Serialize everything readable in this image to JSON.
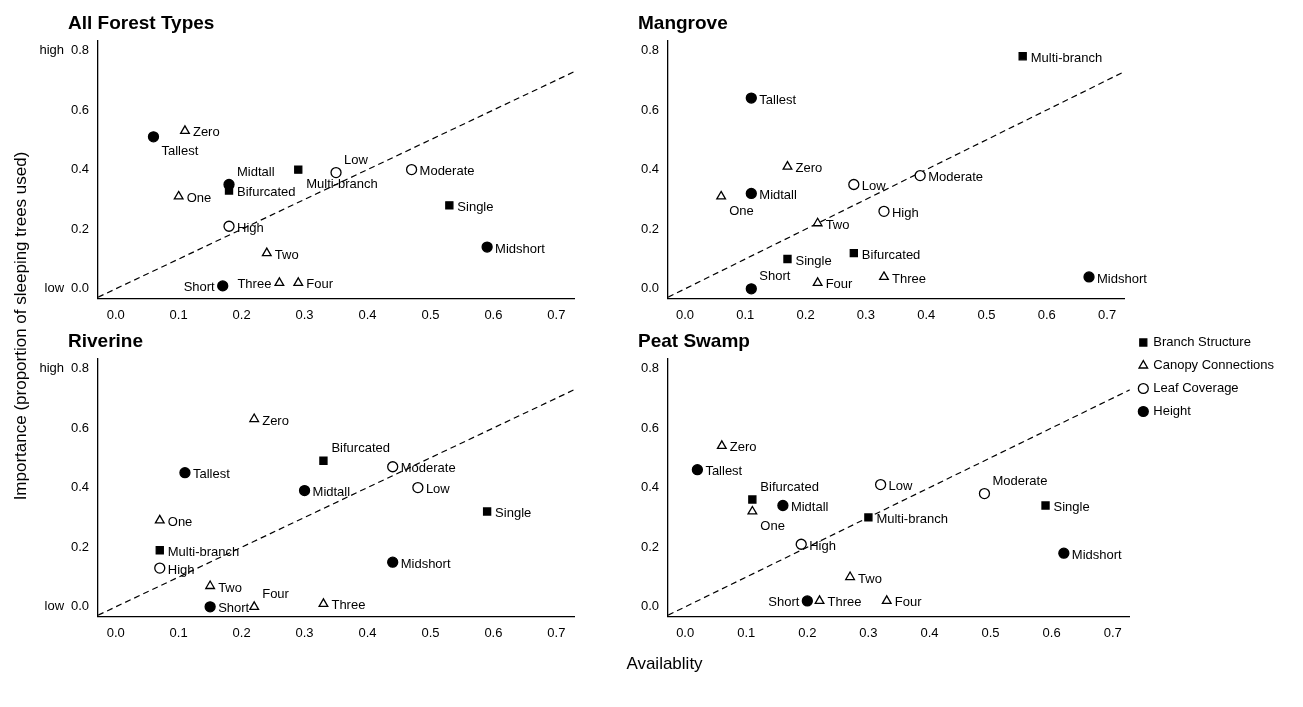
{
  "chart_data": [
    {
      "type": "scatter",
      "title": "All Forest Types",
      "ylabel": "Importance (proportion of sleeping trees used)",
      "xlim": [
        -0.028,
        0.728
      ],
      "ylim": [
        -0.032,
        0.832
      ],
      "xticks": [
        {
          "value": 0,
          "label": "0.0"
        },
        {
          "value": 0.1,
          "label": "0.1"
        },
        {
          "value": 0.2,
          "label": "0.2"
        },
        {
          "value": 0.3,
          "label": "0.3"
        },
        {
          "value": 0.4,
          "label": "0.4"
        },
        {
          "value": 0.5,
          "label": "0.5"
        },
        {
          "value": 0.6,
          "label": "0.6"
        },
        {
          "value": 0.7,
          "label": "0.7"
        }
      ],
      "yticks": [
        {
          "value": 0,
          "label": "0.0"
        },
        {
          "value": 0.2,
          "label": "0.2"
        },
        {
          "value": 0.4,
          "label": "0.4"
        },
        {
          "value": 0.6,
          "label": "0.6"
        },
        {
          "value": 0.8,
          "label": "0.8"
        }
      ],
      "grid": false,
      "annotations": [
        "high",
        "low"
      ],
      "series": [
        {
          "color": "#000000",
          "marker": "square",
          "x": [
            0.29,
            0.18,
            0.53
          ],
          "values": [
            0.4,
            0.33,
            0.28
          ],
          "value_labels": [
            "Multi-branch",
            "Bifurcated",
            "Single"
          ]
        },
        {
          "color": "#000000",
          "marker": "triangle",
          "x": [
            0.11,
            0.1,
            0.24,
            0.26,
            0.29
          ],
          "values": [
            0.53,
            0.31,
            0.12,
            0.02,
            0.02
          ],
          "value_labels": [
            "Zero",
            "One",
            "Two",
            "Three",
            "Four"
          ]
        },
        {
          "color": "#000000",
          "marker": "circle",
          "x": [
            0.35,
            0.47,
            0.18
          ],
          "values": [
            0.39,
            0.4,
            0.21
          ],
          "value_labels": [
            "Low",
            "Moderate",
            "High"
          ]
        },
        {
          "color": "#000000",
          "marker": "circle",
          "x": [
            0.06,
            0.18,
            0.17,
            0.59
          ],
          "values": [
            0.51,
            0.35,
            0.01,
            0.14
          ],
          "value_labels": [
            "Tallest",
            "Midtall",
            "Short",
            "Midshort"
          ]
        },
        {
          "type": "line",
          "color": "#000000",
          "marker": "none",
          "line_style": "dashed",
          "x": [
            -0.028,
            0.728
          ],
          "values": [
            -0.028,
            0.728
          ]
        }
      ]
    },
    {
      "type": "scatter",
      "title": "Mangrove",
      "xlim": [
        -0.028,
        0.728
      ],
      "ylim": [
        -0.032,
        0.832
      ],
      "xticks": [
        {
          "value": 0,
          "label": "0.0"
        },
        {
          "value": 0.1,
          "label": "0.1"
        },
        {
          "value": 0.2,
          "label": "0.2"
        },
        {
          "value": 0.3,
          "label": "0.3"
        },
        {
          "value": 0.4,
          "label": "0.4"
        },
        {
          "value": 0.5,
          "label": "0.5"
        },
        {
          "value": 0.6,
          "label": "0.6"
        },
        {
          "value": 0.7,
          "label": "0.7"
        }
      ],
      "yticks": [
        {
          "value": 0,
          "label": "0.0"
        },
        {
          "value": 0.2,
          "label": "0.2"
        },
        {
          "value": 0.4,
          "label": "0.4"
        },
        {
          "value": 0.6,
          "label": "0.6"
        },
        {
          "value": 0.8,
          "label": "0.8"
        }
      ],
      "grid": false,
      "series": [
        {
          "color": "#000000",
          "marker": "square",
          "x": [
            0.56,
            0.28,
            0.17
          ],
          "values": [
            0.78,
            0.12,
            0.1
          ],
          "value_labels": [
            "Multi-branch",
            "Bifurcated",
            "Single"
          ]
        },
        {
          "color": "#000000",
          "marker": "triangle",
          "x": [
            0.17,
            0.06,
            0.22,
            0.33,
            0.22
          ],
          "values": [
            0.41,
            0.31,
            0.22,
            0.04,
            0.02
          ],
          "value_labels": [
            "Zero",
            "One",
            "Two",
            "Three",
            "Four"
          ]
        },
        {
          "color": "#000000",
          "marker": "circle",
          "x": [
            0.28,
            0.39,
            0.33
          ],
          "values": [
            0.35,
            0.38,
            0.26
          ],
          "value_labels": [
            "Low",
            "Moderate",
            "High"
          ]
        },
        {
          "color": "#000000",
          "marker": "circle",
          "x": [
            0.11,
            0.11,
            0.11,
            0.67
          ],
          "values": [
            0.64,
            0.32,
            0.0,
            0.04
          ],
          "value_labels": [
            "Tallest",
            "Midtall",
            "Short",
            "Midshort"
          ]
        },
        {
          "type": "line",
          "color": "#000000",
          "marker": "none",
          "line_style": "dashed",
          "x": [
            -0.028,
            0.728
          ],
          "values": [
            -0.028,
            0.728
          ]
        }
      ]
    },
    {
      "type": "scatter",
      "title": "Riverine",
      "xlabel": "Availablity",
      "xlim": [
        -0.028,
        0.728
      ],
      "ylim": [
        -0.032,
        0.832
      ],
      "xticks": [
        {
          "value": 0,
          "label": "0.0"
        },
        {
          "value": 0.1,
          "label": "0.1"
        },
        {
          "value": 0.2,
          "label": "0.2"
        },
        {
          "value": 0.3,
          "label": "0.3"
        },
        {
          "value": 0.4,
          "label": "0.4"
        },
        {
          "value": 0.5,
          "label": "0.5"
        },
        {
          "value": 0.6,
          "label": "0.6"
        },
        {
          "value": 0.7,
          "label": "0.7"
        }
      ],
      "yticks": [
        {
          "value": 0,
          "label": "0.0"
        },
        {
          "value": 0.2,
          "label": "0.2"
        },
        {
          "value": 0.4,
          "label": "0.4"
        },
        {
          "value": 0.6,
          "label": "0.6"
        },
        {
          "value": 0.8,
          "label": "0.8"
        }
      ],
      "grid": false,
      "annotations": [
        "high",
        "low"
      ],
      "series": [
        {
          "color": "#000000",
          "marker": "square",
          "x": [
            0.33,
            0.07,
            0.59
          ],
          "values": [
            0.49,
            0.19,
            0.32
          ],
          "value_labels": [
            "Bifurcated",
            "Multi-branch",
            "Single"
          ]
        },
        {
          "color": "#000000",
          "marker": "triangle",
          "x": [
            0.22,
            0.07,
            0.15,
            0.33,
            0.22
          ],
          "values": [
            0.63,
            0.29,
            0.07,
            0.01,
            0.0
          ],
          "value_labels": [
            "Zero",
            "One",
            "Two",
            "Three",
            "Four"
          ]
        },
        {
          "color": "#000000",
          "marker": "circle",
          "x": [
            0.44,
            0.48,
            0.07
          ],
          "values": [
            0.47,
            0.4,
            0.13
          ],
          "value_labels": [
            "Moderate",
            "Low",
            "High"
          ]
        },
        {
          "color": "#000000",
          "marker": "circle",
          "x": [
            0.11,
            0.3,
            0.15,
            0.44
          ],
          "values": [
            0.45,
            0.39,
            0.0,
            0.15
          ],
          "value_labels": [
            "Tallest",
            "Midtall",
            "Short",
            "Midshort"
          ]
        },
        {
          "type": "line",
          "color": "#000000",
          "marker": "none",
          "line_style": "dashed",
          "x": [
            -0.028,
            0.728
          ],
          "values": [
            -0.028,
            0.728
          ]
        }
      ]
    },
    {
      "type": "scatter",
      "title": "Peat Swamp",
      "xlim": [
        -0.028,
        0.728
      ],
      "ylim": [
        -0.032,
        0.832
      ],
      "xticks": [
        {
          "value": 0,
          "label": "0.0"
        },
        {
          "value": 0.1,
          "label": "0.1"
        },
        {
          "value": 0.2,
          "label": "0.2"
        },
        {
          "value": 0.3,
          "label": "0.3"
        },
        {
          "value": 0.4,
          "label": "0.4"
        },
        {
          "value": 0.5,
          "label": "0.5"
        },
        {
          "value": 0.6,
          "label": "0.6"
        },
        {
          "value": 0.7,
          "label": "0.7"
        }
      ],
      "yticks": [
        {
          "value": 0,
          "label": "0.0"
        },
        {
          "value": 0.2,
          "label": "0.2"
        },
        {
          "value": 0.4,
          "label": "0.4"
        },
        {
          "value": 0.6,
          "label": "0.6"
        },
        {
          "value": 0.8,
          "label": "0.8"
        }
      ],
      "grid": false,
      "legend": "right",
      "series": [
        {
          "name": "Branch Structure",
          "color": "#000000",
          "marker": "square",
          "x": [
            0.11,
            0.3,
            0.59
          ],
          "values": [
            0.36,
            0.3,
            0.34
          ],
          "value_labels": [
            "Bifurcated",
            "Multi-branch",
            "Single"
          ]
        },
        {
          "name": "Canopy Connections",
          "color": "#000000",
          "marker": "triangle",
          "x": [
            0.06,
            0.11,
            0.27,
            0.22,
            0.33
          ],
          "values": [
            0.54,
            0.32,
            0.1,
            0.02,
            0.02
          ],
          "value_labels": [
            "Zero",
            "One",
            "Two",
            "Three",
            "Four"
          ]
        },
        {
          "name": "Leaf Coverage",
          "color": "#000000",
          "marker": "circle",
          "x": [
            0.32,
            0.49,
            0.19
          ],
          "values": [
            0.41,
            0.38,
            0.21
          ],
          "value_labels": [
            "Low",
            "Moderate",
            "High"
          ]
        },
        {
          "name": "Height",
          "color": "#000000",
          "marker": "circle",
          "x": [
            0.02,
            0.16,
            0.2,
            0.62
          ],
          "values": [
            0.46,
            0.34,
            0.02,
            0.18
          ],
          "value_labels": [
            "Tallest",
            "Midtall",
            "Short",
            "Midshort"
          ]
        },
        {
          "type": "line",
          "color": "#000000",
          "marker": "none",
          "line_style": "dashed",
          "x": [
            -0.028,
            0.728
          ],
          "values": [
            -0.028,
            0.728
          ]
        }
      ]
    }
  ]
}
